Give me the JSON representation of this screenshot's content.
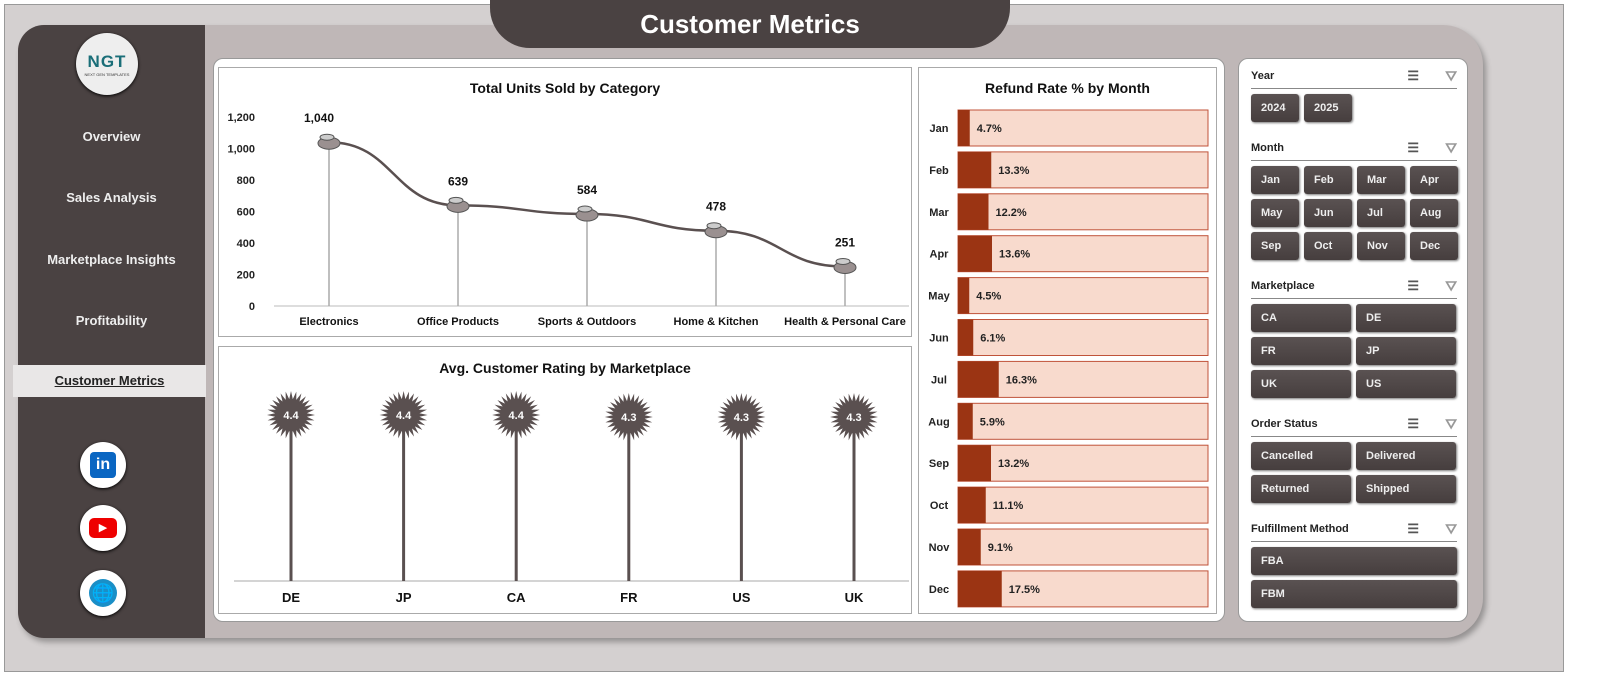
{
  "header": {
    "title": "Customer Metrics"
  },
  "sidebar": {
    "logo": "NGT",
    "logo_sub": "NEXT GEN TEMPLATES",
    "items": [
      {
        "label": "Overview"
      },
      {
        "label": "Sales Analysis"
      },
      {
        "label": "Marketplace Insights"
      },
      {
        "label": "Profitability"
      },
      {
        "label": "Customer Metrics",
        "active": true
      }
    ],
    "social": [
      "linkedin-icon",
      "youtube-icon",
      "globe-icon"
    ]
  },
  "chart_data": [
    {
      "type": "line",
      "title": "Total Units Sold by Category",
      "categories": [
        "Electronics",
        "Office Products",
        "Sports & Outdoors",
        "Home & Kitchen",
        "Health & Personal Care"
      ],
      "values": [
        1040,
        639,
        584,
        478,
        251
      ],
      "data_labels": [
        "1,040",
        "639",
        "584",
        "478",
        "251"
      ],
      "ylim": [
        0,
        1200
      ],
      "yticks": [
        "0",
        "200",
        "400",
        "600",
        "800",
        "1,000",
        "1,200"
      ],
      "color": "#5a5050"
    },
    {
      "type": "bar",
      "title": "Avg. Customer Rating by Marketplace",
      "categories": [
        "DE",
        "JP",
        "CA",
        "FR",
        "US",
        "UK"
      ],
      "values": [
        4.4,
        4.4,
        4.4,
        4.3,
        4.3,
        4.3
      ],
      "color": "#5a5050"
    },
    {
      "type": "bar",
      "orientation": "horizontal",
      "title": "Refund  Rate % by Month",
      "categories": [
        "Jan",
        "Feb",
        "Mar",
        "Apr",
        "May",
        "Jun",
        "Jul",
        "Aug",
        "Sep",
        "Oct",
        "Nov",
        "Dec"
      ],
      "values": [
        4.7,
        13.3,
        12.2,
        13.6,
        4.5,
        6.1,
        16.3,
        5.9,
        13.2,
        11.1,
        9.1,
        17.5
      ],
      "data_labels": [
        "4.7%",
        "13.3%",
        "12.2%",
        "13.6%",
        "4.5%",
        "6.1%",
        "16.3%",
        "5.9%",
        "13.2%",
        "11.1%",
        "9.1%",
        "17.5%"
      ],
      "xlim": [
        0,
        100
      ],
      "color": "#9b3413",
      "track_color": "#f8dacd"
    }
  ],
  "slicers": [
    {
      "title": "Year",
      "items": [
        "2024",
        "2025"
      ]
    },
    {
      "title": "Month",
      "items": [
        "Jan",
        "Feb",
        "Mar",
        "Apr",
        "May",
        "Jun",
        "Jul",
        "Aug",
        "Sep",
        "Oct",
        "Nov",
        "Dec"
      ]
    },
    {
      "title": "Marketplace",
      "items": [
        "CA",
        "DE",
        "FR",
        "JP",
        "UK",
        "US"
      ]
    },
    {
      "title": "Order Status",
      "items": [
        "Cancelled",
        "Delivered",
        "Returned",
        "Shipped"
      ]
    },
    {
      "title": "Fulfillment Method",
      "items": [
        "FBA",
        "FBM"
      ]
    }
  ]
}
